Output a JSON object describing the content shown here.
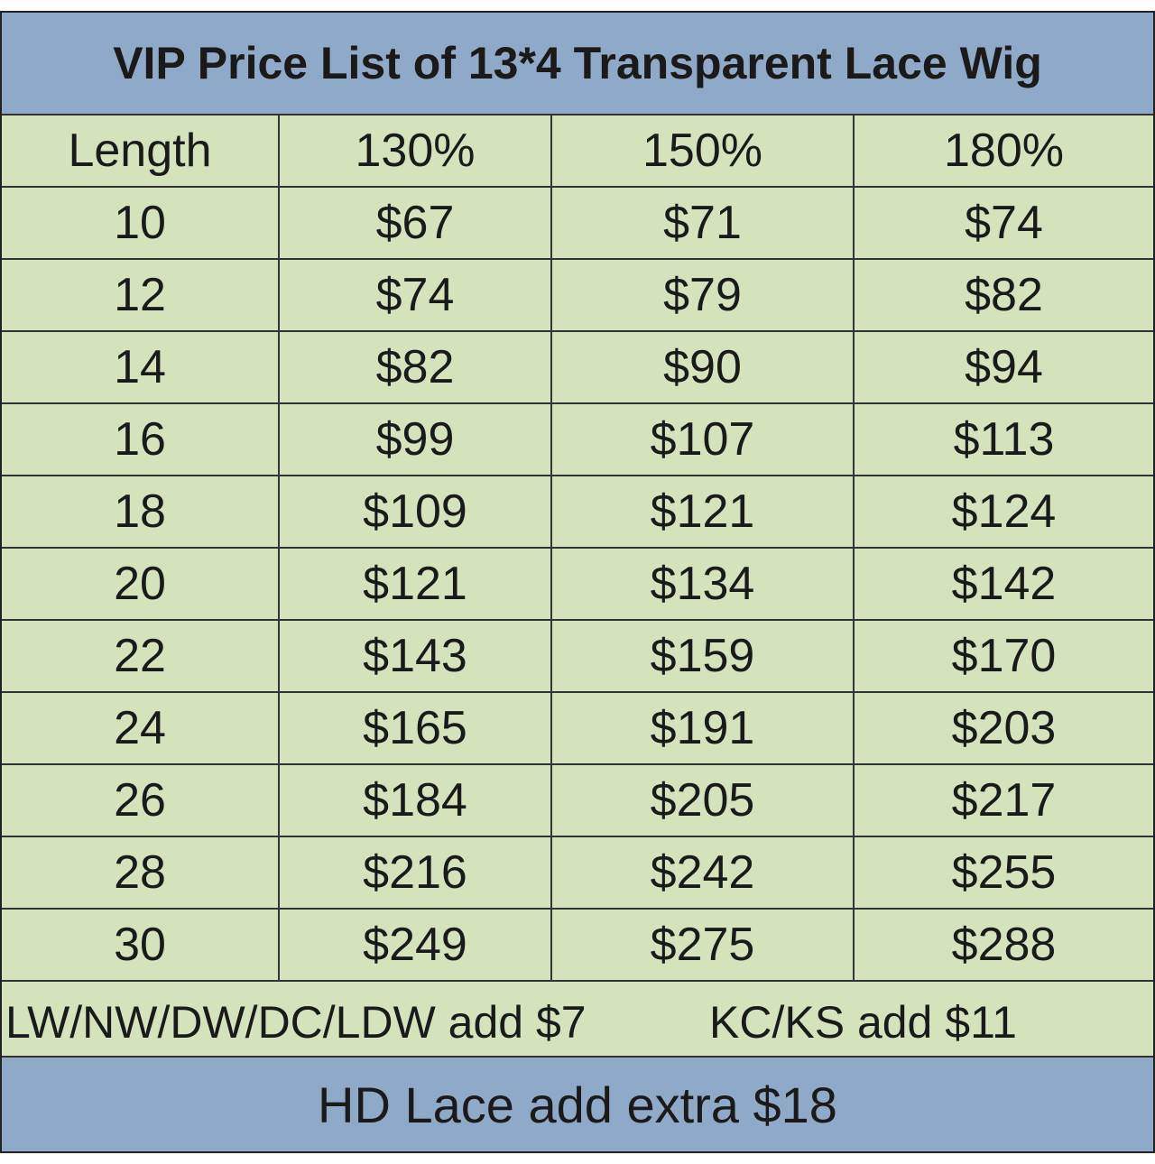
{
  "title": "VIP Price List of 13*4 Transparent Lace Wig",
  "table": {
    "header": [
      "Length",
      "130%",
      "150%",
      "180%"
    ],
    "rows": [
      [
        "10",
        "$67",
        "$71",
        "$74"
      ],
      [
        "12",
        "$74",
        "$79",
        "$82"
      ],
      [
        "14",
        "$82",
        "$90",
        "$94"
      ],
      [
        "16",
        "$99",
        "$107",
        "$113"
      ],
      [
        "18",
        "$109",
        "$121",
        "$124"
      ],
      [
        "20",
        "$121",
        "$134",
        "$142"
      ],
      [
        "22",
        "$143",
        "$159",
        "$170"
      ],
      [
        "24",
        "$165",
        "$191",
        "$203"
      ],
      [
        "26",
        "$184",
        "$205",
        "$217"
      ],
      [
        "28",
        "$216",
        "$242",
        "$255"
      ],
      [
        "30",
        "$249",
        "$275",
        "$288"
      ]
    ]
  },
  "notes": [
    "LW/NW/DW/DC/LDW add $7",
    "KC/KS add $11"
  ],
  "footer": "HD Lace add extra $18"
}
